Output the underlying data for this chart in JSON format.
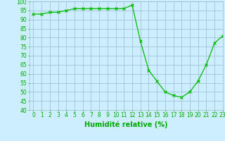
{
  "x": [
    0,
    1,
    2,
    3,
    4,
    5,
    6,
    7,
    8,
    9,
    10,
    11,
    12,
    13,
    14,
    15,
    16,
    17,
    18,
    19,
    20,
    21,
    22,
    23
  ],
  "y": [
    93,
    93,
    94,
    94,
    95,
    96,
    96,
    96,
    96,
    96,
    96,
    96,
    98,
    78,
    62,
    56,
    50,
    48,
    47,
    50,
    56,
    65,
    77,
    81
  ],
  "line_color": "#00bb00",
  "marker": "x",
  "marker_color": "#00bb00",
  "bg_color": "#cceeff",
  "grid_color": "#99bbcc",
  "xlabel": "Humidité relative (%)",
  "xlabel_color": "#00aa00",
  "tick_color": "#00aa00",
  "ylim": [
    40,
    100
  ],
  "xlim": [
    -0.5,
    23
  ],
  "yticks": [
    40,
    45,
    50,
    55,
    60,
    65,
    70,
    75,
    80,
    85,
    90,
    95,
    100
  ],
  "xticks": [
    0,
    1,
    2,
    3,
    4,
    5,
    6,
    7,
    8,
    9,
    10,
    11,
    12,
    13,
    14,
    15,
    16,
    17,
    18,
    19,
    20,
    21,
    22,
    23
  ],
  "tick_fontsize": 5.5,
  "xlabel_fontsize": 7.0
}
